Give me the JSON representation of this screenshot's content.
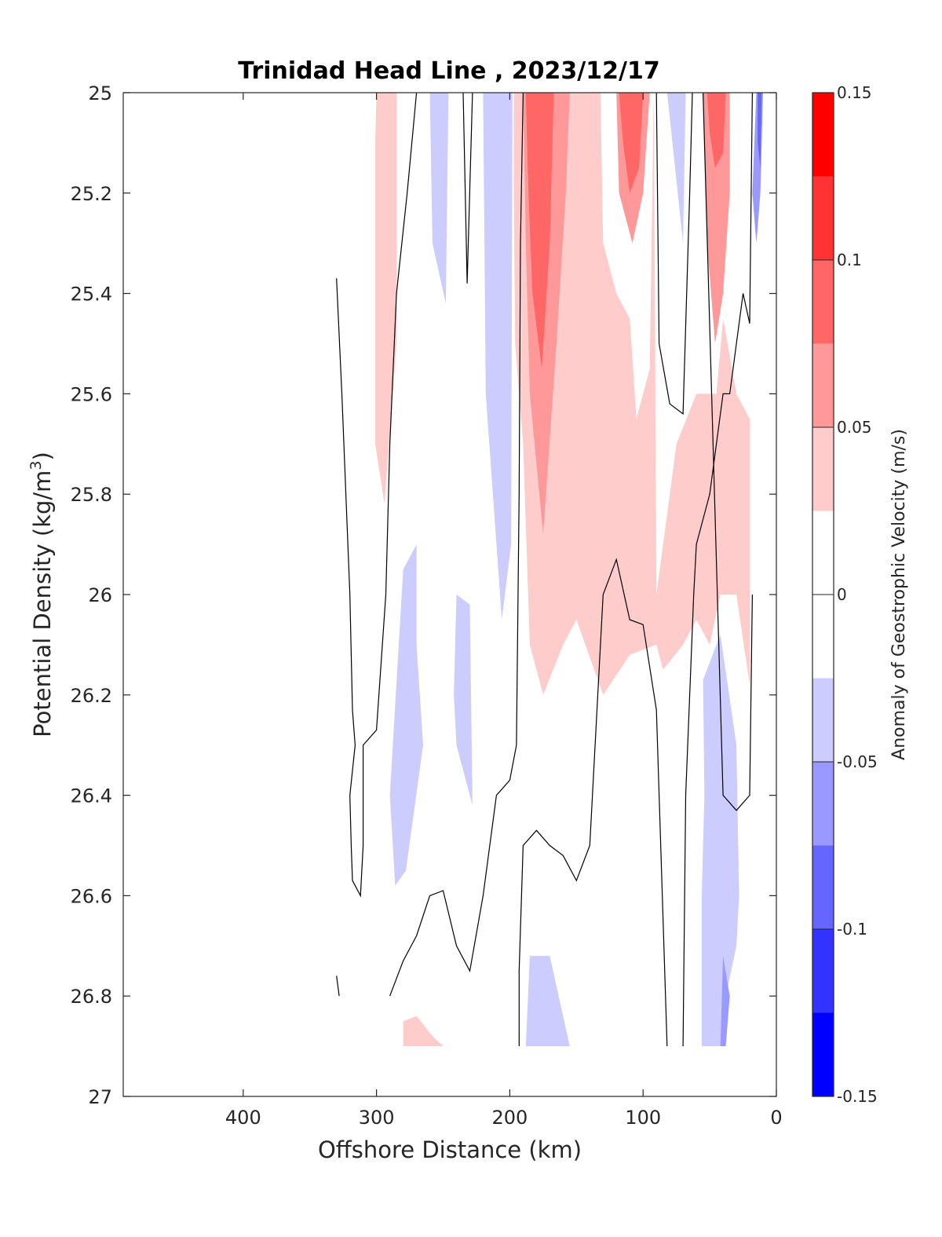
{
  "chart_data": {
    "type": "heatmap",
    "title": "Trinidad Head Line , 2023/12/17",
    "xlabel": "Offshore Distance (km)",
    "ylabel": "Potential Density (kg/m³)",
    "ylabel_base": "Potential Density (kg/m",
    "ylabel_sup": "3",
    "ylabel_end": ")",
    "xlim": [
      490,
      0
    ],
    "x_reversed": true,
    "ylim": [
      25,
      27
    ],
    "y_reversed": true,
    "xticks": [
      400,
      300,
      200,
      100,
      0
    ],
    "yticks": [
      25,
      25.2,
      25.4,
      25.6,
      25.8,
      26,
      26.2,
      26.4,
      26.6,
      26.8,
      27
    ],
    "yticklabels": [
      "25",
      "25.2",
      "25.4",
      "25.6",
      "25.8",
      "26",
      "26.2",
      "26.4",
      "26.6",
      "26.8",
      "27"
    ],
    "colorbar": {
      "label": "Anomaly of Geostrophic Velocity (m/s)",
      "range": [
        -0.15,
        0.15
      ],
      "ticks": [
        0.15,
        0.1,
        0.05,
        0,
        -0.05,
        -0.1,
        -0.15
      ],
      "ticklabels": [
        "0.15",
        "0.1",
        "0.05",
        "0",
        "-0.05",
        "-0.1",
        "-0.15"
      ],
      "levels": [
        -0.15,
        -0.125,
        -0.1,
        -0.075,
        -0.05,
        -0.025,
        0.025,
        0.05,
        0.075,
        0.1,
        0.125,
        0.15
      ],
      "colors": [
        "#0000ff",
        "#3333ff",
        "#6666ff",
        "#9999ff",
        "#ccccff",
        "#ffffff",
        "#ffcccc",
        "#ff9999",
        "#ff6666",
        "#ff3333",
        "#ff0000"
      ]
    },
    "regions": [
      {
        "level": 1,
        "pts": [
          [
            300,
            25
          ],
          [
            285,
            25
          ],
          [
            285,
            25.5
          ],
          [
            294,
            25.82
          ],
          [
            301,
            25.7
          ],
          [
            301,
            25.1
          ]
        ]
      },
      {
        "level": 1,
        "pts": [
          [
            210,
            25.0
          ],
          [
            132,
            25.0
          ],
          [
            130,
            25.3
          ],
          [
            120,
            25.4
          ],
          [
            110,
            25.45
          ],
          [
            105,
            25.65
          ],
          [
            95,
            25.55
          ],
          [
            92,
            25.0
          ],
          [
            90,
            26.0
          ],
          [
            80,
            25.8
          ],
          [
            75,
            25.7
          ],
          [
            60,
            25.6
          ],
          [
            50,
            25.6
          ],
          [
            45,
            25.6
          ],
          [
            40,
            25.45
          ],
          [
            30,
            25.6
          ],
          [
            20,
            25.65
          ],
          [
            20,
            26.18
          ],
          [
            30,
            26.0
          ],
          [
            42,
            26.0
          ],
          [
            50,
            26.1
          ],
          [
            60,
            26.05
          ],
          [
            70,
            26.1
          ],
          [
            85,
            26.15
          ],
          [
            90,
            26.1
          ],
          [
            110,
            26.12
          ],
          [
            130,
            26.2
          ],
          [
            150,
            26.05
          ],
          [
            160,
            26.1
          ],
          [
            175,
            26.2
          ],
          [
            185,
            26.1
          ],
          [
            190,
            25.7
          ],
          [
            196,
            25.5
          ],
          [
            197,
            25.2
          ],
          [
            197,
            25.0
          ]
        ]
      },
      {
        "level": 1,
        "pts": [
          [
            280,
            26.85
          ],
          [
            270,
            26.84
          ],
          [
            258,
            26.88
          ],
          [
            250,
            26.9
          ],
          [
            240,
            26.9
          ],
          [
            280,
            26.9
          ]
        ]
      },
      {
        "level": 2,
        "pts": [
          [
            190,
            25.0
          ],
          [
            155,
            25.0
          ],
          [
            158,
            25.2
          ],
          [
            165,
            25.5
          ],
          [
            175,
            25.88
          ],
          [
            185,
            25.6
          ],
          [
            188,
            25.3
          ]
        ]
      },
      {
        "level": 2,
        "pts": [
          [
            120,
            25.0
          ],
          [
            95,
            25.0
          ],
          [
            100,
            25.2
          ],
          [
            108,
            25.3
          ],
          [
            118,
            25.2
          ]
        ]
      },
      {
        "level": 2,
        "pts": [
          [
            55,
            25.0
          ],
          [
            35,
            25.0
          ],
          [
            35,
            25.2
          ],
          [
            40,
            25.4
          ],
          [
            46,
            25.5
          ],
          [
            52,
            25.3
          ]
        ]
      },
      {
        "level": 3,
        "pts": [
          [
            188,
            25.0
          ],
          [
            167,
            25.0
          ],
          [
            170,
            25.3
          ],
          [
            176,
            25.55
          ],
          [
            183,
            25.4
          ],
          [
            186,
            25.2
          ]
        ]
      },
      {
        "level": 3,
        "pts": [
          [
            118,
            25.0
          ],
          [
            100,
            25.0
          ],
          [
            103,
            25.15
          ],
          [
            110,
            25.2
          ],
          [
            115,
            25.1
          ]
        ]
      },
      {
        "level": 3,
        "pts": [
          [
            52,
            25.0
          ],
          [
            38,
            25.0
          ],
          [
            40,
            25.12
          ],
          [
            46,
            25.15
          ],
          [
            50,
            25.08
          ]
        ]
      },
      {
        "level": -1,
        "pts": [
          [
            260,
            25
          ],
          [
            246,
            25
          ],
          [
            248,
            25.42
          ],
          [
            258,
            25.3
          ]
        ]
      },
      {
        "level": -1,
        "pts": [
          [
            220,
            25
          ],
          [
            198,
            25
          ],
          [
            199,
            25.9
          ],
          [
            206,
            26.05
          ],
          [
            210,
            25.9
          ],
          [
            218,
            25.6
          ]
        ]
      },
      {
        "level": -1,
        "pts": [
          [
            82,
            25
          ],
          [
            68,
            25
          ],
          [
            70,
            25.3
          ],
          [
            78,
            25.1
          ]
        ]
      },
      {
        "level": -1,
        "pts": [
          [
            270,
            25.9
          ],
          [
            280,
            25.95
          ],
          [
            290,
            26.4
          ],
          [
            286,
            26.58
          ],
          [
            278,
            26.55
          ],
          [
            265,
            26.3
          ],
          [
            270,
            26.1
          ]
        ]
      },
      {
        "level": -1,
        "pts": [
          [
            240,
            26.0
          ],
          [
            230,
            26.02
          ],
          [
            228,
            26.42
          ],
          [
            240,
            26.3
          ],
          [
            242,
            26.2
          ]
        ]
      },
      {
        "level": -1,
        "pts": [
          [
            185,
            26.72
          ],
          [
            170,
            26.72
          ],
          [
            155,
            26.9
          ],
          [
            188,
            26.9
          ]
        ]
      },
      {
        "level": -1,
        "pts": [
          [
            55,
            26.17
          ],
          [
            42,
            26.08
          ],
          [
            30,
            26.3
          ],
          [
            28,
            26.6
          ],
          [
            30,
            26.7
          ],
          [
            38,
            26.8
          ],
          [
            42,
            26.9
          ],
          [
            56,
            26.9
          ],
          [
            56,
            26.6
          ],
          [
            54,
            26.4
          ]
        ]
      },
      {
        "level": -2,
        "pts": [
          [
            40,
            26.72
          ],
          [
            35,
            26.8
          ],
          [
            38,
            26.9
          ],
          [
            42,
            26.9
          ]
        ]
      },
      {
        "level": -2,
        "pts": [
          [
            15,
            25.0
          ],
          [
            10,
            25.0
          ],
          [
            12,
            25.2
          ],
          [
            15,
            25.3
          ],
          [
            18,
            25.2
          ]
        ]
      },
      {
        "level": -3,
        "pts": [
          [
            14,
            25.0
          ],
          [
            11,
            25.0
          ],
          [
            12,
            25.15
          ],
          [
            14,
            25.1
          ]
        ]
      }
    ],
    "contour_lines": [
      [
        [
          330,
          25.37
        ],
        [
          326,
          25.6
        ],
        [
          323,
          25.8
        ],
        [
          320,
          26.0
        ],
        [
          318,
          26.23
        ],
        [
          316,
          26.3
        ],
        [
          320,
          26.4
        ],
        [
          319,
          26.5
        ],
        [
          318,
          26.57
        ],
        [
          312,
          26.6
        ],
        [
          310,
          26.5
        ],
        [
          310,
          26.4
        ],
        [
          310,
          26.3
        ],
        [
          300,
          26.27
        ],
        [
          293,
          26.0
        ],
        [
          290,
          25.7
        ],
        [
          285,
          25.4
        ],
        [
          277,
          25.2
        ],
        [
          270,
          25.0
        ]
      ],
      [
        [
          330,
          26.76
        ],
        [
          328,
          26.8
        ]
      ],
      [
        [
          290,
          26.8
        ],
        [
          280,
          26.73
        ],
        [
          270,
          26.68
        ],
        [
          260,
          26.6
        ],
        [
          250,
          26.59
        ],
        [
          240,
          26.7
        ],
        [
          230,
          26.75
        ],
        [
          220,
          26.6
        ],
        [
          210,
          26.4
        ],
        [
          200,
          26.37
        ],
        [
          195,
          26.3
        ],
        [
          193,
          25.8
        ],
        [
          192,
          25.3
        ],
        [
          190,
          25.0
        ]
      ],
      [
        [
          235,
          25.0
        ],
        [
          232,
          25.38
        ],
        [
          228,
          25.0
        ]
      ],
      [
        [
          193,
          26.9
        ],
        [
          193,
          26.75
        ],
        [
          190,
          26.5
        ],
        [
          180,
          26.47
        ],
        [
          170,
          26.5
        ],
        [
          160,
          26.52
        ],
        [
          150,
          26.57
        ],
        [
          140,
          26.5
        ],
        [
          130,
          26.0
        ],
        [
          120,
          25.93
        ],
        [
          110,
          26.05
        ],
        [
          100,
          26.06
        ],
        [
          90,
          26.23
        ],
        [
          82,
          26.9
        ]
      ],
      [
        [
          70,
          26.9
        ],
        [
          68,
          26.4
        ],
        [
          62,
          26.0
        ],
        [
          60,
          25.9
        ],
        [
          50,
          25.8
        ],
        [
          40,
          25.6
        ],
        [
          35,
          25.6
        ],
        [
          25,
          25.4
        ],
        [
          20,
          25.46
        ],
        [
          18,
          25.0
        ]
      ],
      [
        [
          90,
          25.0
        ],
        [
          88,
          25.5
        ],
        [
          80,
          25.62
        ],
        [
          70,
          25.64
        ],
        [
          65,
          25.2
        ],
        [
          63,
          25.0
        ]
      ],
      [
        [
          55,
          25.0
        ],
        [
          40,
          26.4
        ],
        [
          30,
          26.43
        ],
        [
          20,
          26.4
        ],
        [
          18,
          26.0
        ]
      ]
    ]
  }
}
